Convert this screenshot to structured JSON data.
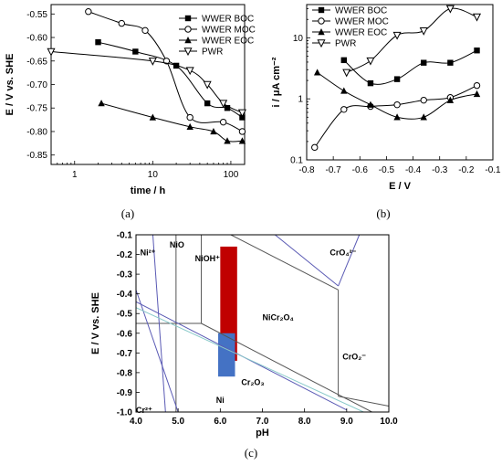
{
  "captions": [
    "(a)",
    "(b)",
    "(c)"
  ],
  "chart_data": [
    {
      "type": "line",
      "xscale": "log",
      "xlim": [
        0.5,
        150
      ],
      "ylim": [
        -0.87,
        -0.53
      ],
      "xticks": [
        1,
        10,
        100
      ],
      "xtick_labels": [
        "1",
        "10",
        "100"
      ],
      "yticks": [
        -0.85,
        -0.8,
        -0.75,
        -0.7,
        -0.65,
        -0.6,
        -0.55
      ],
      "ytick_labels": [
        "-0.85",
        "-0.80",
        "-0.75",
        "-0.70",
        "-0.65",
        "-0.60",
        "-0.55"
      ],
      "xlabel": "time / h",
      "ylabel": "E / V vs. SHE",
      "legend_position": "top-right",
      "series": [
        {
          "name": "WWER BOC",
          "marker": "square",
          "x": [
            2,
            6,
            20,
            50,
            90,
            140
          ],
          "y": [
            -0.61,
            -0.63,
            -0.66,
            -0.74,
            -0.75,
            -0.77
          ]
        },
        {
          "name": "WWER MOC",
          "marker": "circle",
          "x": [
            1.5,
            4,
            8,
            15,
            30,
            80,
            140
          ],
          "y": [
            -0.545,
            -0.57,
            -0.585,
            -0.65,
            -0.77,
            -0.78,
            -0.8
          ]
        },
        {
          "name": "WWER EOC",
          "marker": "triangle-up",
          "x": [
            2.2,
            10,
            30,
            60,
            90,
            140
          ],
          "y": [
            -0.74,
            -0.77,
            -0.79,
            -0.8,
            -0.82,
            -0.82
          ]
        },
        {
          "name": "PWR",
          "marker": "triangle-down",
          "x": [
            0.5,
            10,
            30,
            50,
            80,
            140
          ],
          "y": [
            -0.63,
            -0.65,
            -0.67,
            -0.7,
            -0.74,
            -0.76
          ]
        }
      ]
    },
    {
      "type": "scatter",
      "yscale": "log",
      "x_reversed": true,
      "xlim": [
        -0.8,
        -0.1
      ],
      "ylim": [
        0.1,
        35
      ],
      "xticks": [
        -0.8,
        -0.7,
        -0.6,
        -0.5,
        -0.4,
        -0.3,
        -0.2,
        -0.1
      ],
      "xtick_labels": [
        "-0.8",
        "-0.7",
        "-0.6",
        "-0.5",
        "-0.4",
        "-0.3",
        "-0.2",
        "-0.1"
      ],
      "yticks": [
        0.1,
        1,
        10
      ],
      "ytick_labels": [
        "0.1",
        "1",
        "10"
      ],
      "xlabel": "E / V",
      "ylabel": "i / μA cm⁻²",
      "legend_position": "top-left",
      "series": [
        {
          "name": "WWER BOC",
          "marker": "square",
          "x": [
            -0.66,
            -0.56,
            -0.46,
            -0.36,
            -0.26,
            -0.16
          ],
          "y": [
            4.3,
            1.8,
            2.1,
            3.9,
            3.9,
            6.2
          ]
        },
        {
          "name": "WWER MOC",
          "marker": "circle",
          "x": [
            -0.77,
            -0.66,
            -0.56,
            -0.46,
            -0.36,
            -0.26,
            -0.16
          ],
          "y": [
            0.16,
            0.67,
            0.75,
            0.8,
            0.95,
            1.05,
            1.65
          ]
        },
        {
          "name": "WWER EOC",
          "marker": "triangle-up",
          "x": [
            -0.76,
            -0.66,
            -0.56,
            -0.46,
            -0.36,
            -0.26,
            -0.16
          ],
          "y": [
            2.7,
            1.35,
            0.8,
            0.5,
            0.5,
            0.95,
            1.2
          ]
        },
        {
          "name": "PWR",
          "marker": "triangle-down",
          "x": [
            -0.65,
            -0.56,
            -0.46,
            -0.36,
            -0.26,
            -0.16
          ],
          "y": [
            2.7,
            4.2,
            11,
            13,
            30,
            22
          ]
        }
      ]
    },
    {
      "type": "line",
      "xlim": [
        4.0,
        10.0
      ],
      "ylim": [
        -1.0,
        -0.1
      ],
      "xticks": [
        4,
        5,
        6,
        7,
        8,
        9,
        10
      ],
      "xtick_labels": [
        "4.0",
        "5.0",
        "6.0",
        "7.0",
        "8.0",
        "9.0",
        "10.0"
      ],
      "yticks": [
        -1.0,
        -0.9,
        -0.8,
        -0.7,
        -0.6,
        -0.5,
        -0.4,
        -0.3,
        -0.2,
        -0.1
      ],
      "ytick_labels": [
        "-1.0",
        "-0.9",
        "-0.8",
        "-0.7",
        "-0.6",
        "-0.5",
        "-0.4",
        "-0.3",
        "-0.2",
        "-0.1"
      ],
      "xlabel": "pH",
      "ylabel": "E / V vs. SHE",
      "region_labels": [
        {
          "text": "Ni²⁺",
          "x": 4.1,
          "y": -0.19
        },
        {
          "text": "NiO",
          "x": 4.8,
          "y": -0.15
        },
        {
          "text": "NiOH⁺",
          "x": 5.4,
          "y": -0.22
        },
        {
          "text": "CrO₄²⁻",
          "x": 8.6,
          "y": -0.19
        },
        {
          "text": "NiCr₂O₄",
          "x": 7.0,
          "y": -0.52
        },
        {
          "text": "CrO₂⁻",
          "x": 8.9,
          "y": -0.72
        },
        {
          "text": "Cr₂O₃",
          "x": 6.5,
          "y": -0.85
        },
        {
          "text": "Ni",
          "x": 5.9,
          "y": -0.94
        },
        {
          "text": "Cr²⁺",
          "x": 4.0,
          "y": -0.99
        }
      ],
      "boundaries": [
        {
          "color": "#555555",
          "x": [
            4.95,
            4.95
          ],
          "y": [
            -0.1,
            -1.0
          ]
        },
        {
          "color": "#555555",
          "x": [
            5.55,
            5.55
          ],
          "y": [
            -0.1,
            -0.55
          ]
        },
        {
          "color": "#555555",
          "x": [
            4.0,
            5.55
          ],
          "y": [
            -0.55,
            -0.55
          ]
        },
        {
          "color": "#555555",
          "x": [
            6.25,
            8.8
          ],
          "y": [
            -0.1,
            -0.38
          ]
        },
        {
          "color": "#555555",
          "x": [
            8.8,
            8.8
          ],
          "y": [
            -0.38,
            -0.92
          ]
        },
        {
          "color": "#555555",
          "x": [
            5.55,
            9.6
          ],
          "y": [
            -0.55,
            -1.0
          ]
        },
        {
          "color": "#555555",
          "x": [
            8.8,
            10.0
          ],
          "y": [
            -0.92,
            -0.97
          ]
        },
        {
          "color": "#5a5ab4",
          "x": [
            4.0,
            5.0
          ],
          "y": [
            -0.38,
            -1.0
          ]
        },
        {
          "color": "#5a5ab4",
          "x": [
            4.0,
            9.0
          ],
          "y": [
            -0.44,
            -0.99
          ]
        },
        {
          "color": "#5a5ab4",
          "x": [
            7.3,
            8.8
          ],
          "y": [
            -0.1,
            -0.36
          ]
        },
        {
          "color": "#5a5ab4",
          "x": [
            8.8,
            9.3
          ],
          "y": [
            -0.36,
            -0.1
          ]
        },
        {
          "color": "#5a5ab4",
          "x": [
            4.4,
            4.7
          ],
          "y": [
            -0.1,
            -1.0
          ]
        },
        {
          "color": "#88c9c9",
          "x": [
            4.0,
            9.4
          ],
          "y": [
            -0.47,
            -1.0
          ]
        }
      ],
      "rectangles": [
        {
          "color": "#c00000",
          "x": [
            6.0,
            6.4
          ],
          "y": [
            -0.74,
            -0.16
          ]
        },
        {
          "color": "#4472c4",
          "x": [
            5.95,
            6.35
          ],
          "y": [
            -0.82,
            -0.6
          ]
        }
      ]
    }
  ]
}
